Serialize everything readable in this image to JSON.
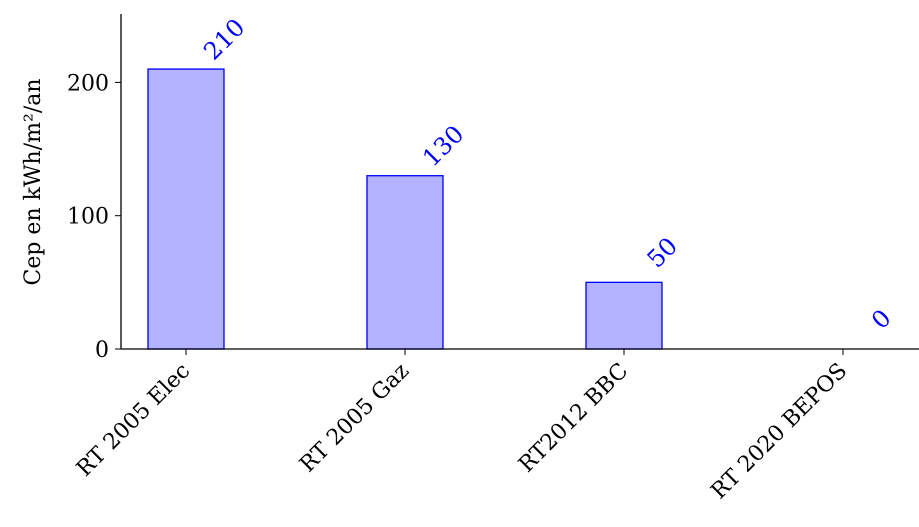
{
  "chart_data": {
    "type": "bar",
    "categories": [
      "RT 2005 Elec",
      "RT 2005 Gaz",
      "RT2012 BBC",
      "RT 2020 BEPOS"
    ],
    "values": [
      210,
      130,
      50,
      0
    ],
    "data_labels": [
      "210",
      "130",
      "50",
      "0"
    ],
    "title": "",
    "xlabel": "",
    "ylabel": "Cep en kWh/m²/an",
    "ylim": [
      0,
      250
    ],
    "yticks": [
      0,
      100,
      200
    ],
    "ytick_labels": [
      "0",
      "100",
      "200"
    ],
    "grid": false,
    "legend": "none",
    "colors": {
      "bar_fill": "#b3b3ff",
      "bar_stroke": "#0000ff",
      "data_label": "#0000ff",
      "axis": "#000000"
    }
  }
}
